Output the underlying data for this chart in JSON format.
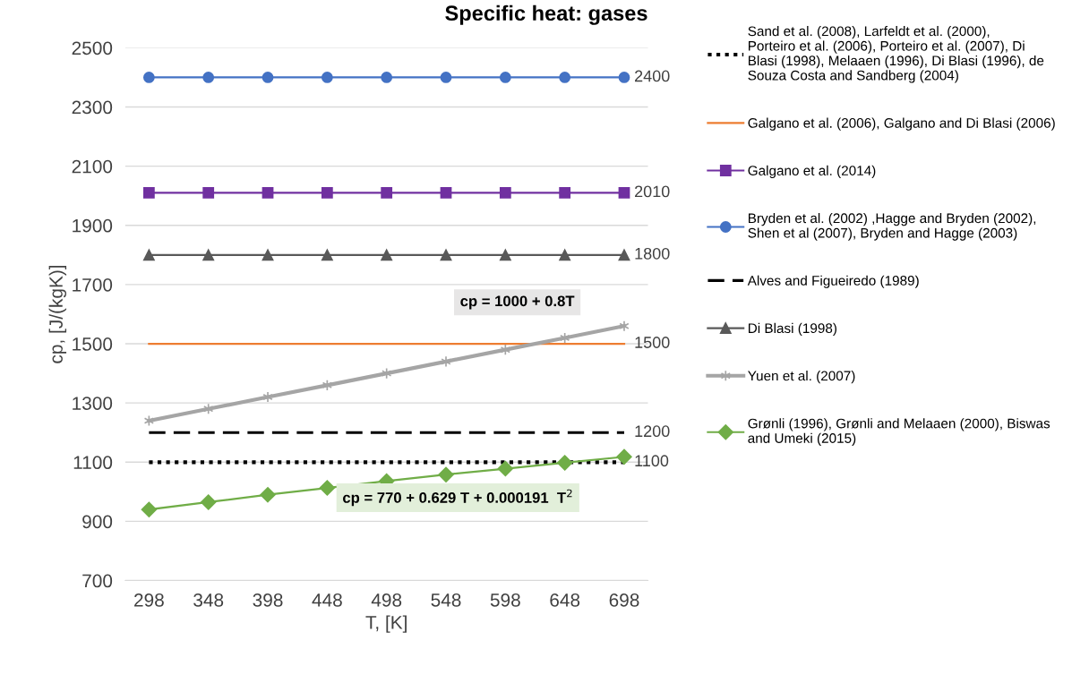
{
  "chart_data": {
    "type": "line",
    "title": "Specific heat: gases",
    "xlabel": "T, [K]",
    "ylabel": "cp, [J/(kgK)]",
    "categories": [
      "298",
      "348",
      "398",
      "448",
      "498",
      "548",
      "598",
      "648",
      "698"
    ],
    "series": [
      {
        "name": "Sand et al. (2008), Larfeldt et al. (2000), Porteiro et al. (2006), Porteiro et al. (2007), Di Blasi (1998), Melaaen (1996), Di Blasi (1996), de Souza Costa and Sandberg (2004)",
        "color": "#000000",
        "line_style": "dotted",
        "marker": "none",
        "values": [
          1100,
          1100,
          1100,
          1100,
          1100,
          1100,
          1100,
          1100,
          1100
        ]
      },
      {
        "name": "Galgano et al. (2006), Galgano and Di Blasi (2006)",
        "color": "#ed7d31",
        "line_style": "solid",
        "marker": "none",
        "values": [
          1500,
          1500,
          1500,
          1500,
          1500,
          1500,
          1500,
          1500,
          1500
        ]
      },
      {
        "name": "Galgano et al. (2014)",
        "color": "#7030a0",
        "line_style": "solid",
        "marker": "square",
        "values": [
          2010,
          2010,
          2010,
          2010,
          2010,
          2010,
          2010,
          2010,
          2010
        ]
      },
      {
        "name": "Bryden et al. (2002) ,Hagge and Bryden (2002), Shen et al (2007), Bryden and Hagge (2003)",
        "color": "#4472c4",
        "line_style": "solid",
        "marker": "circle",
        "values": [
          2400,
          2400,
          2400,
          2400,
          2400,
          2400,
          2400,
          2400,
          2400
        ]
      },
      {
        "name": "Alves and Figueiredo (1989)",
        "color": "#000000",
        "line_style": "dashed",
        "marker": "none",
        "values": [
          1200,
          1200,
          1200,
          1200,
          1200,
          1200,
          1200,
          1200,
          1200
        ]
      },
      {
        "name": "Di Blasi (1998)",
        "color": "#595959",
        "line_style": "solid",
        "marker": "triangle",
        "values": [
          1800,
          1800,
          1800,
          1800,
          1800,
          1800,
          1800,
          1800,
          1800
        ]
      },
      {
        "name": "Yuen et al. (2007)",
        "color": "#a5a5a5",
        "line_style": "solid",
        "marker": "cross",
        "values": [
          1240,
          1280,
          1320,
          1360,
          1400,
          1440,
          1480,
          1520,
          1560
        ]
      },
      {
        "name": "Grønli (1996), Grønli and Melaaen (2000), Biswas and Umeki (2015)",
        "color": "#70ad47",
        "line_style": "solid",
        "marker": "diamond",
        "values": [
          940,
          965,
          990,
          1013,
          1036,
          1058,
          1078,
          1098,
          1118
        ]
      }
    ],
    "ylim": [
      700,
      2500
    ],
    "yticks": [
      700,
      900,
      1100,
      1300,
      1500,
      1700,
      1900,
      2100,
      2300,
      2500
    ],
    "grid": "y",
    "legend": "right",
    "annotations": [
      {
        "text": "2400",
        "x": "698",
        "y": 2400
      },
      {
        "text": "2010",
        "x": "698",
        "y": 2010
      },
      {
        "text": "1800",
        "x": "698",
        "y": 1800
      },
      {
        "text": "1500",
        "x": "698",
        "y": 1500
      },
      {
        "text": "1200",
        "x": "698",
        "y": 1200
      },
      {
        "text": "1100",
        "x": "698",
        "y": 1100
      },
      "cp = 1000 + 0.8T",
      "cp = 770 + 0.629 T + 0.000191  T$^{2}$"
    ]
  }
}
